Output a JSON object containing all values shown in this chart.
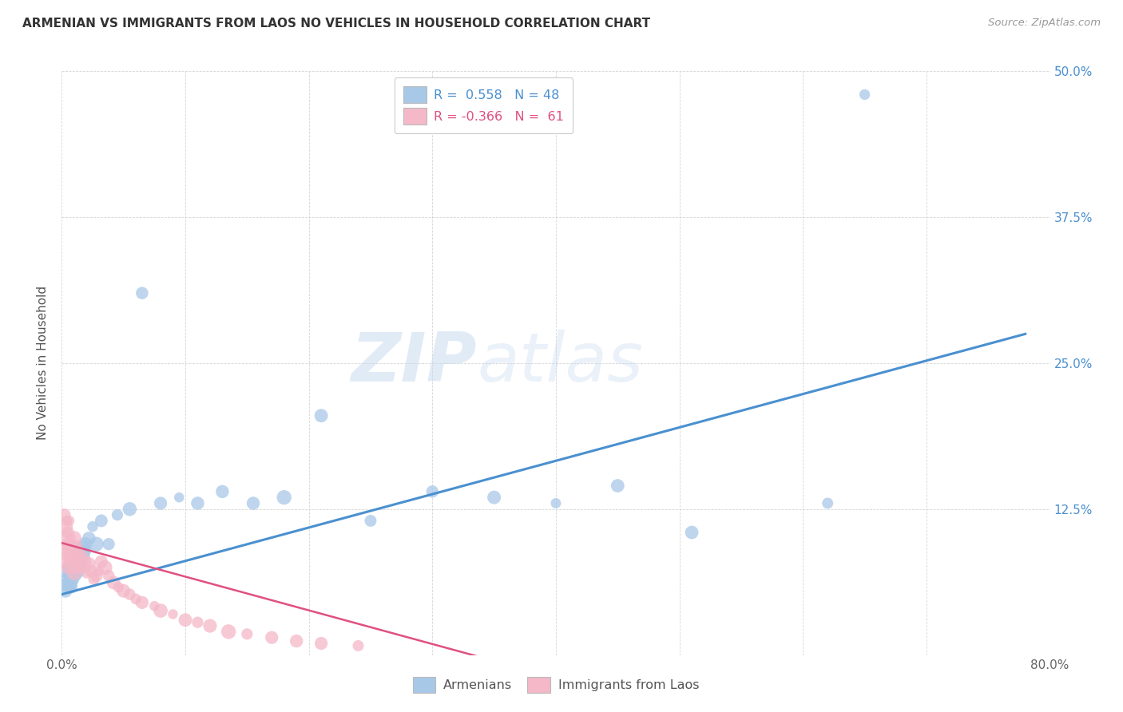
{
  "title": "ARMENIAN VS IMMIGRANTS FROM LAOS NO VEHICLES IN HOUSEHOLD CORRELATION CHART",
  "source": "Source: ZipAtlas.com",
  "ylabel": "No Vehicles in Household",
  "xlim": [
    0.0,
    0.8
  ],
  "ylim": [
    0.0,
    0.5
  ],
  "armenians_R": 0.558,
  "armenians_N": 48,
  "laos_R": -0.366,
  "laos_N": 61,
  "blue_color": "#a8c8e8",
  "pink_color": "#f4b8c8",
  "blue_line_color": "#4a90d0",
  "pink_line_color": "#e05080",
  "watermark_zip": "ZIP",
  "watermark_atlas": "atlas",
  "legend_armenians": "Armenians",
  "legend_laos": "Immigrants from Laos",
  "armenians_x": [
    0.002,
    0.003,
    0.004,
    0.005,
    0.005,
    0.006,
    0.006,
    0.007,
    0.007,
    0.008,
    0.008,
    0.009,
    0.009,
    0.01,
    0.01,
    0.011,
    0.012,
    0.013,
    0.014,
    0.015,
    0.016,
    0.017,
    0.018,
    0.019,
    0.02,
    0.022,
    0.025,
    0.028,
    0.032,
    0.038,
    0.045,
    0.055,
    0.065,
    0.08,
    0.095,
    0.11,
    0.13,
    0.155,
    0.18,
    0.21,
    0.25,
    0.3,
    0.35,
    0.4,
    0.45,
    0.51,
    0.62,
    0.65
  ],
  "armenians_y": [
    0.06,
    0.055,
    0.065,
    0.07,
    0.075,
    0.058,
    0.068,
    0.062,
    0.072,
    0.058,
    0.068,
    0.075,
    0.065,
    0.07,
    0.08,
    0.075,
    0.068,
    0.072,
    0.078,
    0.082,
    0.088,
    0.092,
    0.085,
    0.095,
    0.09,
    0.1,
    0.11,
    0.095,
    0.115,
    0.095,
    0.12,
    0.125,
    0.31,
    0.13,
    0.135,
    0.13,
    0.14,
    0.13,
    0.135,
    0.205,
    0.115,
    0.14,
    0.135,
    0.13,
    0.145,
    0.105,
    0.13,
    0.48
  ],
  "laos_x": [
    0.001,
    0.002,
    0.002,
    0.003,
    0.003,
    0.004,
    0.004,
    0.004,
    0.005,
    0.005,
    0.005,
    0.006,
    0.006,
    0.006,
    0.007,
    0.007,
    0.008,
    0.008,
    0.009,
    0.009,
    0.01,
    0.01,
    0.01,
    0.011,
    0.011,
    0.012,
    0.012,
    0.013,
    0.014,
    0.015,
    0.016,
    0.017,
    0.018,
    0.019,
    0.02,
    0.022,
    0.024,
    0.026,
    0.028,
    0.03,
    0.032,
    0.035,
    0.038,
    0.042,
    0.046,
    0.05,
    0.055,
    0.06,
    0.065,
    0.075,
    0.08,
    0.09,
    0.1,
    0.11,
    0.12,
    0.135,
    0.15,
    0.17,
    0.19,
    0.21,
    0.24
  ],
  "laos_y": [
    0.08,
    0.1,
    0.12,
    0.09,
    0.11,
    0.085,
    0.095,
    0.115,
    0.075,
    0.09,
    0.105,
    0.08,
    0.095,
    0.115,
    0.085,
    0.1,
    0.075,
    0.09,
    0.08,
    0.095,
    0.07,
    0.085,
    0.1,
    0.078,
    0.092,
    0.075,
    0.088,
    0.082,
    0.078,
    0.082,
    0.078,
    0.085,
    0.075,
    0.08,
    0.07,
    0.078,
    0.072,
    0.065,
    0.068,
    0.072,
    0.08,
    0.075,
    0.068,
    0.062,
    0.058,
    0.055,
    0.052,
    0.048,
    0.045,
    0.042,
    0.038,
    0.035,
    0.03,
    0.028,
    0.025,
    0.02,
    0.018,
    0.015,
    0.012,
    0.01,
    0.008
  ],
  "blue_trend_x": [
    0.0,
    0.78
  ],
  "blue_trend_y": [
    0.052,
    0.275
  ],
  "pink_trend_x": [
    0.0,
    0.35
  ],
  "pink_trend_y": [
    0.096,
    -0.005
  ]
}
